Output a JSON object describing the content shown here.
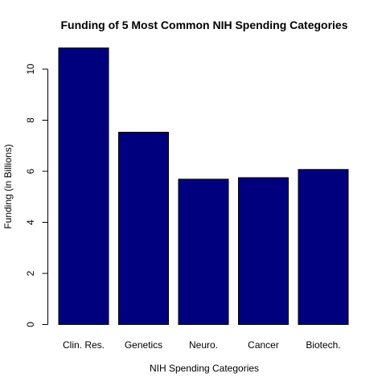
{
  "chart_data": {
    "type": "bar",
    "title": "Funding of 5 Most Common NIH Spending Categories",
    "xlabel": "NIH Spending Categories",
    "ylabel": "Funding (in Billions)",
    "categories": [
      "Clin. Res.",
      "Genetics",
      "Neuro.",
      "Cancer",
      "Biotech."
    ],
    "values": [
      10.83,
      7.53,
      5.69,
      5.75,
      6.07
    ],
    "yticks": [
      0,
      2,
      4,
      6,
      8,
      10
    ],
    "ylim": [
      0,
      10.83
    ],
    "grid": false,
    "legend": "none",
    "bar_color": "#00007F",
    "bar_border_color": "#000000"
  }
}
